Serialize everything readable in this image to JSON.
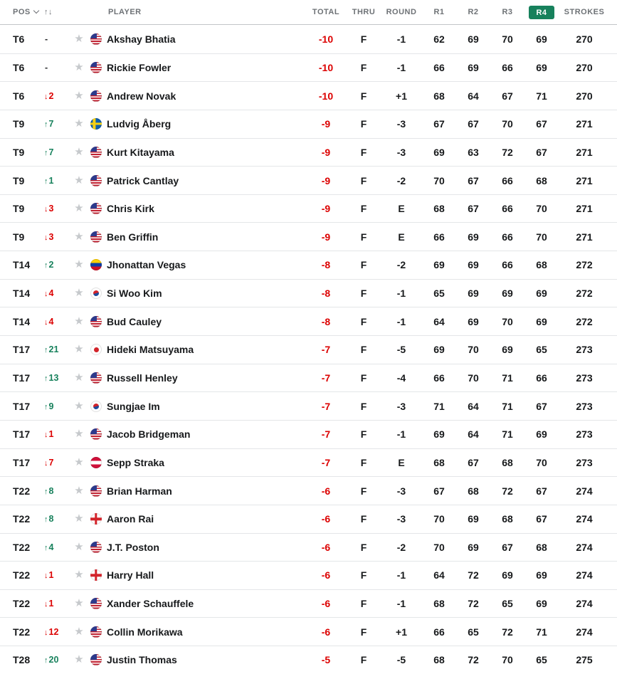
{
  "table": {
    "headers": {
      "pos": "POS",
      "sort_icon": "↑↓",
      "player": "PLAYER",
      "total": "TOTAL",
      "thru": "THRU",
      "round": "ROUND",
      "r1": "R1",
      "r2": "R2",
      "r3": "R3",
      "r4": "R4",
      "strokes": "STROKES"
    },
    "r4_selected": true,
    "colors": {
      "badge_green": "#17815c",
      "movement_up": "#17815c",
      "movement_down": "#dc0000",
      "total_red": "#dc0000"
    },
    "icons": {
      "favorite": "star-icon",
      "pos_dropdown": "chevron-down-icon",
      "sort": "up-down-arrows-icon"
    },
    "rows": [
      {
        "pos": "T6",
        "move": {
          "dir": "none",
          "value": "-"
        },
        "flag": "us",
        "country": "United States",
        "player": "Akshay Bhatia",
        "total": "-10",
        "thru": "F",
        "round": "-1",
        "r1": "62",
        "r2": "69",
        "r3": "70",
        "r4": "69",
        "strokes": "270"
      },
      {
        "pos": "T6",
        "move": {
          "dir": "none",
          "value": "-"
        },
        "flag": "us",
        "country": "United States",
        "player": "Rickie Fowler",
        "total": "-10",
        "thru": "F",
        "round": "-1",
        "r1": "66",
        "r2": "69",
        "r3": "66",
        "r4": "69",
        "strokes": "270"
      },
      {
        "pos": "T6",
        "move": {
          "dir": "down",
          "value": "2"
        },
        "flag": "us",
        "country": "United States",
        "player": "Andrew Novak",
        "total": "-10",
        "thru": "F",
        "round": "+1",
        "r1": "68",
        "r2": "64",
        "r3": "67",
        "r4": "71",
        "strokes": "270"
      },
      {
        "pos": "T9",
        "move": {
          "dir": "up",
          "value": "7"
        },
        "flag": "se",
        "country": "Sweden",
        "player": "Ludvig Åberg",
        "total": "-9",
        "thru": "F",
        "round": "-3",
        "r1": "67",
        "r2": "67",
        "r3": "70",
        "r4": "67",
        "strokes": "271"
      },
      {
        "pos": "T9",
        "move": {
          "dir": "up",
          "value": "7"
        },
        "flag": "us",
        "country": "United States",
        "player": "Kurt Kitayama",
        "total": "-9",
        "thru": "F",
        "round": "-3",
        "r1": "69",
        "r2": "63",
        "r3": "72",
        "r4": "67",
        "strokes": "271"
      },
      {
        "pos": "T9",
        "move": {
          "dir": "up",
          "value": "1"
        },
        "flag": "us",
        "country": "United States",
        "player": "Patrick Cantlay",
        "total": "-9",
        "thru": "F",
        "round": "-2",
        "r1": "70",
        "r2": "67",
        "r3": "66",
        "r4": "68",
        "strokes": "271"
      },
      {
        "pos": "T9",
        "move": {
          "dir": "down",
          "value": "3"
        },
        "flag": "us",
        "country": "United States",
        "player": "Chris Kirk",
        "total": "-9",
        "thru": "F",
        "round": "E",
        "r1": "68",
        "r2": "67",
        "r3": "66",
        "r4": "70",
        "strokes": "271"
      },
      {
        "pos": "T9",
        "move": {
          "dir": "down",
          "value": "3"
        },
        "flag": "us",
        "country": "United States",
        "player": "Ben Griffin",
        "total": "-9",
        "thru": "F",
        "round": "E",
        "r1": "66",
        "r2": "69",
        "r3": "66",
        "r4": "70",
        "strokes": "271"
      },
      {
        "pos": "T14",
        "move": {
          "dir": "up",
          "value": "2"
        },
        "flag": "ve",
        "country": "Venezuela",
        "player": "Jhonattan Vegas",
        "total": "-8",
        "thru": "F",
        "round": "-2",
        "r1": "69",
        "r2": "69",
        "r3": "66",
        "r4": "68",
        "strokes": "272"
      },
      {
        "pos": "T14",
        "move": {
          "dir": "down",
          "value": "4"
        },
        "flag": "kr",
        "country": "South Korea",
        "player": "Si Woo Kim",
        "total": "-8",
        "thru": "F",
        "round": "-1",
        "r1": "65",
        "r2": "69",
        "r3": "69",
        "r4": "69",
        "strokes": "272"
      },
      {
        "pos": "T14",
        "move": {
          "dir": "down",
          "value": "4"
        },
        "flag": "us",
        "country": "United States",
        "player": "Bud Cauley",
        "total": "-8",
        "thru": "F",
        "round": "-1",
        "r1": "64",
        "r2": "69",
        "r3": "70",
        "r4": "69",
        "strokes": "272"
      },
      {
        "pos": "T17",
        "move": {
          "dir": "up",
          "value": "21"
        },
        "flag": "jp",
        "country": "Japan",
        "player": "Hideki Matsuyama",
        "total": "-7",
        "thru": "F",
        "round": "-5",
        "r1": "69",
        "r2": "70",
        "r3": "69",
        "r4": "65",
        "strokes": "273"
      },
      {
        "pos": "T17",
        "move": {
          "dir": "up",
          "value": "13"
        },
        "flag": "us",
        "country": "United States",
        "player": "Russell Henley",
        "total": "-7",
        "thru": "F",
        "round": "-4",
        "r1": "66",
        "r2": "70",
        "r3": "71",
        "r4": "66",
        "strokes": "273"
      },
      {
        "pos": "T17",
        "move": {
          "dir": "up",
          "value": "9"
        },
        "flag": "kr",
        "country": "South Korea",
        "player": "Sungjae Im",
        "total": "-7",
        "thru": "F",
        "round": "-3",
        "r1": "71",
        "r2": "64",
        "r3": "71",
        "r4": "67",
        "strokes": "273"
      },
      {
        "pos": "T17",
        "move": {
          "dir": "down",
          "value": "1"
        },
        "flag": "us",
        "country": "United States",
        "player": "Jacob Bridgeman",
        "total": "-7",
        "thru": "F",
        "round": "-1",
        "r1": "69",
        "r2": "64",
        "r3": "71",
        "r4": "69",
        "strokes": "273"
      },
      {
        "pos": "T17",
        "move": {
          "dir": "down",
          "value": "7"
        },
        "flag": "at",
        "country": "Austria",
        "player": "Sepp Straka",
        "total": "-7",
        "thru": "F",
        "round": "E",
        "r1": "68",
        "r2": "67",
        "r3": "68",
        "r4": "70",
        "strokes": "273"
      },
      {
        "pos": "T22",
        "move": {
          "dir": "up",
          "value": "8"
        },
        "flag": "us",
        "country": "United States",
        "player": "Brian Harman",
        "total": "-6",
        "thru": "F",
        "round": "-3",
        "r1": "67",
        "r2": "68",
        "r3": "72",
        "r4": "67",
        "strokes": "274"
      },
      {
        "pos": "T22",
        "move": {
          "dir": "up",
          "value": "8"
        },
        "flag": "eng",
        "country": "England",
        "player": "Aaron Rai",
        "total": "-6",
        "thru": "F",
        "round": "-3",
        "r1": "70",
        "r2": "69",
        "r3": "68",
        "r4": "67",
        "strokes": "274"
      },
      {
        "pos": "T22",
        "move": {
          "dir": "up",
          "value": "4"
        },
        "flag": "us",
        "country": "United States",
        "player": "J.T. Poston",
        "total": "-6",
        "thru": "F",
        "round": "-2",
        "r1": "70",
        "r2": "69",
        "r3": "67",
        "r4": "68",
        "strokes": "274"
      },
      {
        "pos": "T22",
        "move": {
          "dir": "down",
          "value": "1"
        },
        "flag": "eng",
        "country": "England",
        "player": "Harry Hall",
        "total": "-6",
        "thru": "F",
        "round": "-1",
        "r1": "64",
        "r2": "72",
        "r3": "69",
        "r4": "69",
        "strokes": "274"
      },
      {
        "pos": "T22",
        "move": {
          "dir": "down",
          "value": "1"
        },
        "flag": "us",
        "country": "United States",
        "player": "Xander Schauffele",
        "total": "-6",
        "thru": "F",
        "round": "-1",
        "r1": "68",
        "r2": "72",
        "r3": "65",
        "r4": "69",
        "strokes": "274"
      },
      {
        "pos": "T22",
        "move": {
          "dir": "down",
          "value": "12"
        },
        "flag": "us",
        "country": "United States",
        "player": "Collin Morikawa",
        "total": "-6",
        "thru": "F",
        "round": "+1",
        "r1": "66",
        "r2": "65",
        "r3": "72",
        "r4": "71",
        "strokes": "274"
      },
      {
        "pos": "T28",
        "move": {
          "dir": "up",
          "value": "20"
        },
        "flag": "us",
        "country": "United States",
        "player": "Justin Thomas",
        "total": "-5",
        "thru": "F",
        "round": "-5",
        "r1": "68",
        "r2": "72",
        "r3": "70",
        "r4": "65",
        "strokes": "275"
      }
    ]
  }
}
